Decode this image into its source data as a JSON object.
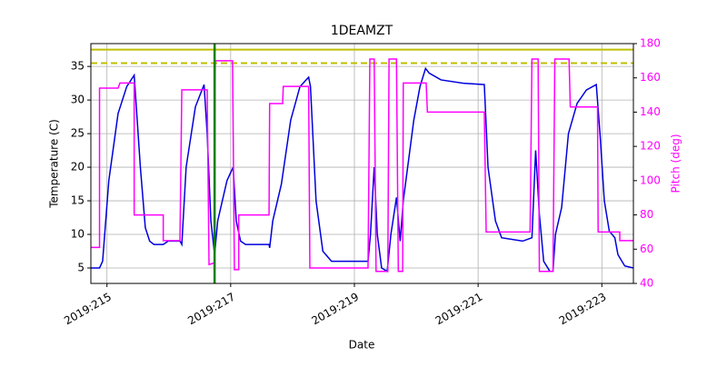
{
  "chart_data": {
    "type": "line",
    "title": "1DEAMZT",
    "x_label": "Date",
    "y_label": "Temperature (C)",
    "y2_label": "Pitch (deg)",
    "xlim": [
      214.74,
      223.51
    ],
    "xticks": [
      {
        "value": 215,
        "label": "2019:215"
      },
      {
        "value": 217,
        "label": "2019:217"
      },
      {
        "value": 219,
        "label": "2019:219"
      },
      {
        "value": 221,
        "label": "2019:221"
      },
      {
        "value": 223,
        "label": "2019:223"
      }
    ],
    "ylim": [
      2.7,
      38.4
    ],
    "yticks": [
      5,
      10,
      15,
      20,
      25,
      30,
      35
    ],
    "y2lim": [
      40,
      180
    ],
    "y2ticks": [
      40,
      60,
      80,
      100,
      120,
      140,
      160,
      180
    ],
    "y2_color": "#ff00ff",
    "grid": true,
    "series": [
      {
        "color": "#0000dd",
        "x": [
          214.74,
          214.88,
          214.93,
          215.03,
          215.18,
          215.32,
          215.44,
          215.54,
          215.62,
          215.69,
          215.76,
          215.91,
          215.99,
          216.18,
          216.21,
          216.28,
          216.43,
          216.57,
          216.62,
          216.68,
          216.74,
          216.79,
          216.94,
          217.04,
          217.09,
          217.16,
          217.24,
          217.62,
          217.63,
          217.68,
          217.82,
          217.97,
          218.12,
          218.26,
          218.29,
          218.38,
          218.49,
          218.63,
          219.22,
          219.26,
          219.32,
          219.37,
          219.44,
          219.53,
          219.59,
          219.68,
          219.74,
          219.79,
          219.96,
          220.06,
          220.15,
          220.21,
          220.4,
          220.76,
          221.1,
          221.16,
          221.28,
          221.38,
          221.72,
          221.87,
          221.93,
          221.99,
          222.06,
          222.16,
          222.21,
          222.25,
          222.35,
          222.46,
          222.6,
          222.75,
          222.91,
          222.97,
          223.04,
          223.12,
          223.21,
          223.26,
          223.37,
          223.51
        ],
        "values": [
          5,
          5,
          6,
          18,
          28,
          32,
          33.7,
          20,
          11,
          9,
          8.5,
          8.5,
          9,
          9,
          8.5,
          20,
          29,
          32.3,
          25,
          12,
          7,
          12,
          18,
          20,
          12,
          9,
          8.5,
          8.5,
          8,
          12,
          17.5,
          27,
          32,
          33.4,
          32,
          15,
          7.5,
          6,
          6,
          10,
          20,
          10,
          5,
          4.5,
          10,
          15.5,
          9,
          15,
          27,
          32,
          34.7,
          34,
          33,
          32.5,
          32.3,
          20,
          12,
          9.5,
          9,
          9.5,
          22.5,
          13,
          6,
          4.5,
          4.5,
          10,
          14,
          25,
          29.5,
          31.5,
          32.3,
          25,
          15,
          10.5,
          9.5,
          7,
          5.3,
          5
        ]
      },
      {
        "color": "#ff00ff",
        "axis": "y2",
        "x": [
          214.74,
          214.88,
          214.88,
          215.18,
          215.21,
          215.44,
          215.44,
          215.91,
          215.91,
          216.18,
          216.21,
          216.62,
          216.65,
          216.74,
          216.75,
          217.03,
          217.06,
          217.13,
          217.13,
          217.62,
          217.63,
          217.84,
          217.85,
          218.26,
          218.28,
          219.22,
          219.25,
          219.32,
          219.35,
          219.54,
          219.56,
          219.68,
          219.71,
          219.78,
          219.79,
          220.16,
          220.18,
          221.1,
          221.13,
          221.84,
          221.87,
          221.97,
          221.99,
          222.21,
          222.24,
          222.47,
          222.49,
          222.93,
          222.94,
          223.29,
          223.29,
          223.51
        ],
        "values": [
          61,
          61,
          154,
          154,
          157,
          157,
          80,
          80,
          65,
          65,
          153,
          153,
          51,
          52,
          170,
          170,
          48,
          48,
          80,
          80,
          145,
          145,
          155,
          155,
          49,
          49,
          171,
          171,
          47,
          47,
          171,
          171,
          47,
          47,
          157,
          157,
          140,
          140,
          70,
          70,
          171,
          171,
          47,
          47,
          171,
          171,
          143,
          143,
          70,
          70,
          65,
          65
        ]
      }
    ],
    "hlines": [
      {
        "value": 37.5,
        "color": "#bfbf00",
        "style": "solid"
      },
      {
        "value": 35.5,
        "color": "#bfbf00",
        "style": "dashed"
      }
    ],
    "vlines": [
      {
        "value": 216.74,
        "color": "#008000",
        "style": "solid"
      }
    ]
  }
}
